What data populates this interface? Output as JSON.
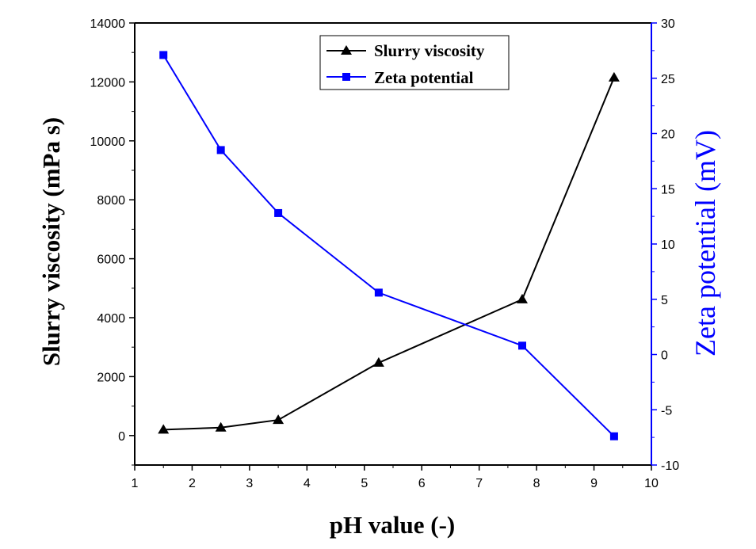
{
  "chart_data": {
    "type": "line",
    "xlabel": "pH value (-)",
    "ylabel_left": "Slurry viscosity (mPa s)",
    "ylabel_right": "Zeta potential (mV)",
    "xlim": [
      1,
      10
    ],
    "ylim_left": [
      -1000,
      14000
    ],
    "ylim_right": [
      -10,
      30
    ],
    "x_ticks": [
      1,
      2,
      3,
      4,
      5,
      6,
      7,
      8,
      9,
      10
    ],
    "y_left_ticks": [
      0,
      2000,
      4000,
      6000,
      8000,
      10000,
      12000,
      14000
    ],
    "y_right_ticks": [
      -10,
      -5,
      0,
      5,
      10,
      15,
      20,
      25,
      30
    ],
    "legend_position": "top-center",
    "grid": false,
    "series": [
      {
        "name": "Slurry viscosity",
        "axis": "left",
        "color": "#000000",
        "marker": "triangle",
        "x": [
          1.5,
          2.5,
          3.5,
          5.25,
          7.75,
          9.35
        ],
        "values": [
          200,
          270,
          530,
          2470,
          4620,
          12150
        ]
      },
      {
        "name": "Zeta potential",
        "axis": "right",
        "color": "#0000ff",
        "marker": "square",
        "x": [
          1.5,
          2.5,
          3.5,
          5.25,
          7.75,
          9.35
        ],
        "values": [
          27.1,
          18.5,
          12.8,
          5.6,
          0.8,
          -7.4
        ]
      }
    ]
  }
}
